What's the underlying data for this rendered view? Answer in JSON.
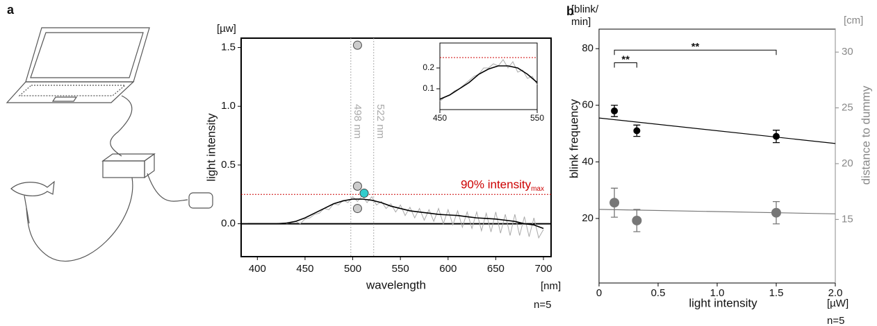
{
  "chart_data": [
    {
      "type": "line",
      "panel_label": "a",
      "x_label": "wavelength",
      "x_unit": "[nm]",
      "y_label": "light intensity",
      "y_unit": "[µw]",
      "note": "n=5",
      "xlim": [
        383,
        708
      ],
      "ylim": [
        -0.28,
        1.58
      ],
      "xticks": [
        400,
        450,
        500,
        550,
        600,
        650,
        700
      ],
      "yticks": [
        {
          "value": 0,
          "label": "0.0"
        },
        0.5,
        {
          "value": 1,
          "label": "1.0"
        },
        1.5
      ],
      "lines": [
        {
          "x": [
            430,
            435,
            440,
            445,
            450,
            455,
            460,
            465,
            470,
            475,
            480,
            485,
            490,
            495,
            500,
            505,
            510,
            515,
            520,
            525,
            530,
            535,
            540,
            545,
            550,
            555,
            560,
            565,
            570,
            575,
            580,
            585,
            590,
            595,
            600,
            605,
            610,
            615,
            620,
            625,
            630,
            635,
            640,
            645,
            650,
            655,
            660,
            665,
            670,
            675,
            680,
            685,
            690,
            695,
            700
          ],
          "values": [
            0.0,
            0.01,
            0.02,
            0.0,
            0.04,
            0.05,
            0.08,
            0.09,
            0.13,
            0.12,
            0.17,
            0.16,
            0.2,
            0.18,
            0.23,
            0.19,
            0.24,
            0.18,
            0.23,
            0.16,
            0.19,
            0.13,
            0.17,
            0.1,
            0.16,
            0.07,
            0.14,
            0.05,
            0.13,
            0.03,
            0.12,
            0.02,
            0.13,
            0.0,
            0.12,
            -0.01,
            0.11,
            -0.03,
            0.1,
            -0.04,
            0.1,
            -0.06,
            0.09,
            -0.07,
            0.1,
            -0.08,
            0.08,
            -0.1,
            0.08,
            -0.1,
            0.06,
            -0.11,
            0.05,
            -0.12,
            -0.05
          ],
          "color": "#aaaaaa"
        },
        {
          "x": [
            390,
            400,
            410,
            420,
            430,
            440,
            450,
            460,
            470,
            480,
            490,
            500,
            510,
            520,
            530,
            540,
            550,
            560,
            570,
            580,
            590,
            600,
            610,
            620,
            630,
            640,
            650,
            660,
            670,
            680,
            690,
            700
          ],
          "values": [
            0,
            0,
            0,
            0,
            0.005,
            0.02,
            0.05,
            0.09,
            0.13,
            0.17,
            0.195,
            0.21,
            0.21,
            0.2,
            0.18,
            0.15,
            0.13,
            0.11,
            0.1,
            0.09,
            0.08,
            0.075,
            0.07,
            0.06,
            0.05,
            0.045,
            0.04,
            0.03,
            0.02,
            0.0,
            -0.01,
            -0.04
          ],
          "color": "#000000"
        }
      ],
      "vlines": [
        {
          "value": 498,
          "label": "498 nm"
        },
        {
          "value": 522,
          "label": "522 nm"
        }
      ],
      "vline_color": "#aaaaaa",
      "hline": {
        "value": 0.25,
        "label": "90% intensity",
        "label_sub": "max",
        "color": "#cc0000"
      },
      "points": {
        "x": [
          505,
          505,
          505,
          512
        ],
        "values": [
          1.52,
          0.32,
          0.13,
          0.26
        ],
        "colors": [
          "#cccccc",
          "#cccccc",
          "#cccccc",
          "#33cccc"
        ]
      }
    },
    {
      "type": "line",
      "xlim": [
        450,
        550
      ],
      "ylim": [
        0,
        0.32
      ],
      "xticks": [
        450,
        550
      ],
      "yticks": [
        0.1,
        0.2
      ],
      "lines": [
        {
          "x": [
            450,
            455,
            460,
            465,
            470,
            475,
            480,
            485,
            490,
            495,
            500,
            505,
            510,
            515,
            520,
            525,
            530,
            535,
            540,
            545,
            550
          ],
          "values": [
            0.04,
            0.06,
            0.07,
            0.09,
            0.1,
            0.12,
            0.14,
            0.16,
            0.17,
            0.2,
            0.2,
            0.22,
            0.21,
            0.24,
            0.2,
            0.23,
            0.18,
            0.19,
            0.15,
            0.16,
            0.12
          ],
          "color": "#aaaaaa"
        },
        {
          "x": [
            450,
            460,
            470,
            480,
            490,
            500,
            510,
            520,
            530,
            540,
            550
          ],
          "values": [
            0.05,
            0.07,
            0.1,
            0.13,
            0.17,
            0.195,
            0.21,
            0.21,
            0.2,
            0.17,
            0.13
          ],
          "color": "#000000"
        }
      ],
      "hline": {
        "value": 0.25,
        "color": "#cc0000"
      }
    },
    {
      "type": "scatter",
      "panel_label": "b",
      "x_label": "light intensity",
      "x_unit": "[µW]",
      "y_label": "blink frequency",
      "y_unit": [
        "[blink/",
        "min]"
      ],
      "y2_label": "distance to dummy",
      "y2_unit": "[cm]",
      "note": "n=5",
      "xlim": [
        0,
        2
      ],
      "ylim": [
        -2.8,
        86.9
      ],
      "y2lim": [
        9.3,
        32.06
      ],
      "xticks": [
        0,
        0.5,
        {
          "value": 1,
          "label": "1.0"
        },
        1.5,
        {
          "value": 2,
          "label": "2.0"
        }
      ],
      "yticks": [
        20,
        40,
        60,
        80
      ],
      "y2ticks": [
        15,
        20,
        25,
        30
      ],
      "y2_color": "#888888",
      "series": [
        {
          "x": [
            0.13,
            0.32,
            1.5
          ],
          "values": [
            58,
            51,
            49
          ],
          "errors": [
            2,
            2,
            2.2
          ],
          "color": "#000000"
        },
        {
          "x": [
            0.13,
            0.32,
            1.5
          ],
          "values": [
            16.5,
            14.9,
            15.6
          ],
          "errors": [
            1.3,
            1,
            1
          ],
          "color": "#777777",
          "axis": "y2"
        }
      ],
      "fits": [
        {
          "x": [
            0,
            2
          ],
          "values": [
            55.5,
            46.5
          ],
          "color": "#000000"
        },
        {
          "x": [
            0,
            2
          ],
          "values": [
            15.9,
            15.5
          ],
          "color": "#777777",
          "axis": "y2"
        }
      ],
      "brackets": [
        {
          "x": [
            0.13,
            0.32
          ],
          "value": 75,
          "label": "**"
        },
        {
          "x": [
            0.13,
            1.5
          ],
          "value": 79.5,
          "label": "**"
        }
      ]
    }
  ]
}
